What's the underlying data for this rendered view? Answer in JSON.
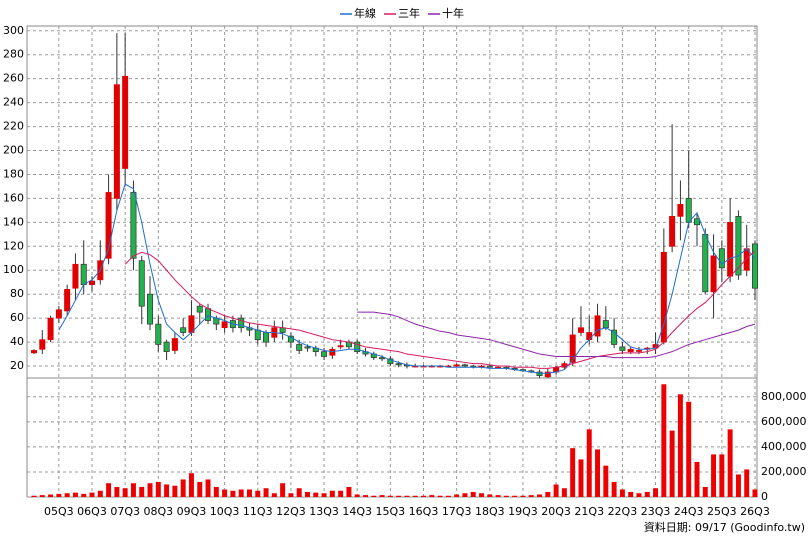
{
  "chart_data": {
    "type": "candlestick",
    "categories": [
      null,
      null,
      null,
      "05Q3",
      null,
      null,
      null,
      "06Q3",
      null,
      null,
      null,
      "07Q3",
      null,
      null,
      null,
      "08Q3",
      null,
      null,
      null,
      "09Q3",
      null,
      null,
      null,
      "10Q3",
      null,
      null,
      null,
      "11Q3",
      null,
      null,
      null,
      "12Q3",
      null,
      null,
      null,
      "13Q3",
      null,
      null,
      null,
      "14Q3",
      null,
      null,
      null,
      "15Q3",
      null,
      null,
      null,
      "16Q3",
      null,
      null,
      null,
      "17Q3",
      null,
      null,
      null,
      "18Q3",
      null,
      null,
      null,
      "19Q3",
      null,
      null,
      null,
      "20Q3",
      null,
      null,
      null,
      "21Q3",
      null,
      null,
      null,
      "22Q3",
      null,
      null,
      null,
      "23Q3",
      null,
      null,
      null,
      "24Q3",
      null,
      null,
      null,
      "25Q3",
      null,
      null,
      null,
      "26Q3"
    ],
    "open": [
      31,
      34,
      42,
      60,
      66,
      85,
      105,
      88,
      92,
      110,
      160,
      185,
      165,
      108,
      80,
      55,
      40,
      33,
      52,
      48,
      70,
      68,
      60,
      52,
      58,
      60,
      52,
      50,
      48,
      44,
      52,
      45,
      38,
      36,
      35,
      32,
      29,
      36,
      40,
      40,
      32,
      30,
      27,
      26,
      22,
      21,
      20,
      20,
      20,
      20,
      20,
      20,
      21,
      20,
      19,
      20,
      19,
      19,
      18,
      17,
      16,
      15,
      11,
      15,
      19,
      23,
      48,
      42,
      45,
      58,
      50,
      36,
      32,
      33,
      34,
      35,
      40,
      120,
      145,
      160,
      143,
      130,
      82,
      118,
      95,
      145,
      100,
      122
    ],
    "high": [
      34,
      50,
      62,
      70,
      88,
      114,
      125,
      95,
      125,
      180,
      298,
      298,
      175,
      112,
      95,
      62,
      42,
      48,
      60,
      75,
      72,
      72,
      62,
      62,
      62,
      63,
      56,
      55,
      50,
      58,
      58,
      48,
      42,
      38,
      37,
      35,
      36,
      42,
      42,
      42,
      35,
      32,
      29,
      28,
      24,
      23,
      22,
      21,
      21,
      21,
      21,
      22,
      22,
      21,
      21,
      21,
      20,
      20,
      19,
      18,
      17,
      17,
      18,
      20,
      24,
      60,
      70,
      62,
      72,
      70,
      60,
      40,
      36,
      36,
      36,
      48,
      135,
      222,
      175,
      200,
      148,
      135,
      130,
      125,
      160,
      150,
      138,
      125
    ],
    "low": [
      30,
      30,
      40,
      56,
      62,
      75,
      80,
      82,
      88,
      105,
      150,
      170,
      100,
      55,
      50,
      32,
      25,
      30,
      45,
      45,
      55,
      55,
      50,
      48,
      48,
      48,
      45,
      38,
      36,
      40,
      42,
      35,
      30,
      32,
      28,
      25,
      26,
      34,
      34,
      30,
      28,
      25,
      24,
      20,
      19,
      18,
      19,
      19,
      19,
      19,
      19,
      19,
      19,
      18,
      18,
      19,
      18,
      17,
      16,
      15,
      14,
      10,
      10,
      13,
      17,
      20,
      45,
      38,
      40,
      50,
      35,
      30,
      30,
      30,
      30,
      30,
      38,
      115,
      125,
      135,
      120,
      80,
      60,
      90,
      90,
      92,
      95,
      75
    ],
    "close": [
      33,
      42,
      60,
      67,
      84,
      105,
      88,
      91,
      108,
      165,
      255,
      262,
      110,
      70,
      55,
      38,
      32,
      43,
      48,
      62,
      65,
      58,
      55,
      57,
      52,
      52,
      50,
      42,
      40,
      52,
      48,
      40,
      33,
      35,
      32,
      28,
      34,
      37,
      36,
      32,
      30,
      27,
      26,
      22,
      21,
      20,
      20,
      20,
      20,
      20,
      20,
      21,
      20,
      19,
      20,
      19,
      19,
      18,
      17,
      16,
      15,
      12,
      15,
      19,
      22,
      46,
      52,
      48,
      62,
      52,
      38,
      33,
      34,
      33,
      35,
      38,
      115,
      145,
      155,
      140,
      138,
      82,
      112,
      102,
      140,
      96,
      118,
      85
    ],
    "up_color": "#e00000",
    "down_color": "#22b14c",
    "ylim": [
      10,
      304
    ],
    "yticks": [
      20,
      40,
      60,
      80,
      100,
      120,
      140,
      160,
      180,
      200,
      220,
      240,
      260,
      280,
      300
    ],
    "grid": true,
    "legend": "top",
    "lines": [
      {
        "name": "年線",
        "color": "#1f6fd0",
        "values": [
          null,
          null,
          null,
          50,
          62,
          75,
          88,
          92,
          100,
          118,
          150,
          172,
          168,
          140,
          105,
          75,
          55,
          48,
          42,
          48,
          55,
          62,
          60,
          58,
          55,
          54,
          52,
          50,
          48,
          48,
          47,
          44,
          40,
          37,
          35,
          33,
          32,
          33,
          34,
          34,
          32,
          30,
          28,
          25,
          23,
          21,
          20,
          20,
          20,
          20,
          19,
          19,
          19,
          19,
          19,
          18,
          18,
          18,
          17,
          16,
          15,
          14,
          14,
          15,
          17,
          25,
          35,
          42,
          50,
          52,
          48,
          42,
          36,
          34,
          34,
          35,
          55,
          80,
          110,
          140,
          148,
          130,
          115,
          105,
          110,
          112,
          118,
          110
        ]
      },
      {
        "name": "三年",
        "color": "#d81b60",
        "values": [
          null,
          null,
          null,
          null,
          null,
          null,
          null,
          null,
          null,
          null,
          null,
          105,
          112,
          115,
          113,
          108,
          100,
          92,
          85,
          78,
          72,
          68,
          65,
          62,
          60,
          58,
          56,
          55,
          54,
          53,
          52,
          51,
          50,
          48,
          46,
          44,
          42,
          41,
          40,
          38,
          36,
          35,
          34,
          33,
          32,
          30,
          29,
          28,
          27,
          26,
          25,
          24,
          23,
          22,
          22,
          21,
          20,
          20,
          19,
          19,
          19,
          18,
          18,
          19,
          20,
          22,
          24,
          26,
          28,
          29,
          30,
          31,
          31,
          31,
          32,
          34,
          40,
          48,
          55,
          62,
          68,
          73,
          80,
          88,
          95,
          102,
          110,
          116
        ]
      },
      {
        "name": "十年",
        "color": "#8e24aa",
        "values": [
          null,
          null,
          null,
          null,
          null,
          null,
          null,
          null,
          null,
          null,
          null,
          null,
          null,
          null,
          null,
          null,
          null,
          null,
          null,
          null,
          null,
          null,
          null,
          null,
          null,
          null,
          null,
          null,
          null,
          null,
          null,
          null,
          null,
          null,
          null,
          null,
          null,
          null,
          null,
          65,
          65,
          65,
          64,
          63,
          61,
          58,
          55,
          53,
          51,
          49,
          48,
          46,
          45,
          44,
          43,
          42,
          40,
          38,
          36,
          34,
          32,
          30,
          29,
          28,
          28,
          28,
          28,
          28,
          28,
          28,
          27,
          27,
          27,
          27,
          27,
          28,
          30,
          32,
          35,
          38,
          40,
          42,
          44,
          46,
          48,
          50,
          53,
          55
        ]
      }
    ],
    "volume": {
      "color": "#ee0000",
      "values": [
        10000,
        15000,
        20000,
        25000,
        30000,
        35000,
        25000,
        35000,
        50000,
        110000,
        80000,
        70000,
        110000,
        80000,
        110000,
        120000,
        100000,
        90000,
        140000,
        190000,
        120000,
        140000,
        80000,
        60000,
        50000,
        60000,
        60000,
        50000,
        70000,
        30000,
        110000,
        30000,
        70000,
        40000,
        35000,
        30000,
        50000,
        50000,
        80000,
        20000,
        15000,
        10000,
        15000,
        10000,
        10000,
        10000,
        10000,
        10000,
        15000,
        10000,
        10000,
        20000,
        30000,
        40000,
        30000,
        20000,
        15000,
        10000,
        10000,
        10000,
        15000,
        20000,
        40000,
        100000,
        70000,
        390000,
        300000,
        540000,
        380000,
        250000,
        120000,
        60000,
        40000,
        30000,
        40000,
        70000,
        900000,
        530000,
        820000,
        760000,
        280000,
        80000,
        340000,
        340000,
        540000,
        180000,
        220000,
        60000
      ],
      "ylim": [
        0,
        950000
      ],
      "yticks": [
        0,
        {
          "value": 200000,
          "label": "200,000"
        },
        {
          "value": 400000,
          "label": "400,000"
        },
        {
          "value": 600000,
          "label": "600,000"
        },
        {
          "value": 800000,
          "label": "800,000"
        }
      ]
    },
    "footnote": "資料日期: 09/17 (Goodinfo.tw)"
  }
}
